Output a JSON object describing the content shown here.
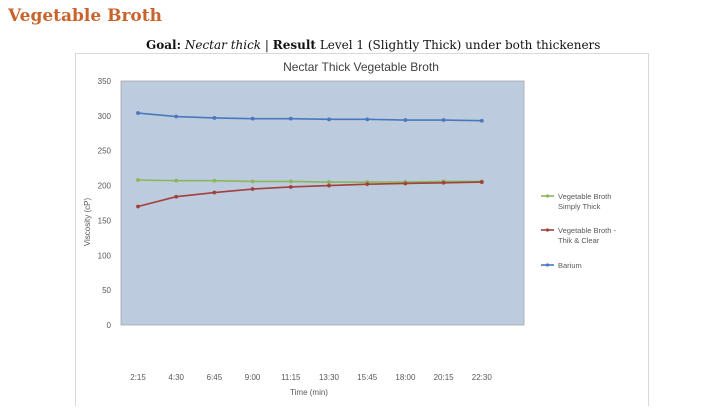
{
  "slide": {
    "title": "Vegetable Broth",
    "goal_label": "Goal:",
    "goal_value": "Nectar thick",
    "separator": "|",
    "result_label": "Result",
    "result_value": "Level 1 (Slightly Thick) under both thickeners"
  },
  "chart_data": {
    "type": "line",
    "title": "Nectar Thick Vegetable Broth",
    "xlabel": "Time (min)",
    "ylabel": "Viscosity (cP)",
    "categories": [
      "2:15",
      "4:30",
      "6:45",
      "9:00",
      "11:15",
      "13:30",
      "15:45",
      "18:00",
      "20:15",
      "22:30"
    ],
    "ylim": [
      0,
      350
    ],
    "yticks": [
      0,
      50,
      100,
      150,
      200,
      250,
      300,
      350
    ],
    "plot_background": "#bccbde",
    "legend_position": "right",
    "series": [
      {
        "name": "Vegetable Broth Simply Thick",
        "color": "#8db65a",
        "values": [
          208,
          207,
          207,
          206,
          206,
          205,
          205,
          205,
          206,
          206
        ]
      },
      {
        "name": "Vegetable Broth - Thik & Clear",
        "color": "#a33f3c",
        "values": [
          170,
          184,
          190,
          195,
          198,
          200,
          202,
          203,
          204,
          205
        ]
      },
      {
        "name": "Barium",
        "color": "#4a78bf",
        "values": [
          304,
          299,
          297,
          296,
          296,
          295,
          295,
          294,
          294,
          293
        ]
      }
    ]
  }
}
